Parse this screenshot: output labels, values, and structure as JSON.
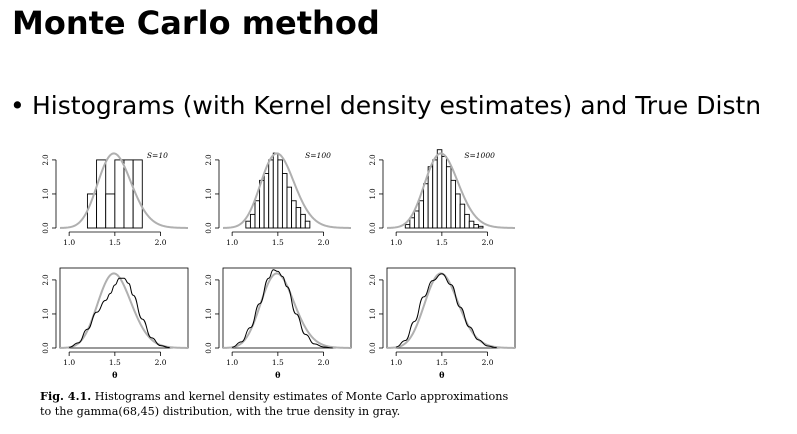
{
  "slide": {
    "title": "Monte Carlo method",
    "bullet": "Histograms (with Kernel density estimates) and True Distn"
  },
  "figure": {
    "caption_label": "Fig. 4.1.",
    "caption_line1": "Histograms and kernel density estimates of Monte Carlo approximations",
    "caption_line2": "to the gamma(68,45) distribution, with the true density in gray."
  },
  "colors": {
    "true_density": "#b0b0b0",
    "estimate": "#000000"
  },
  "chart_data": [
    {
      "type": "bar",
      "panel": "histogram",
      "label": "S=10",
      "bin_edges": [
        1.2,
        1.3,
        1.4,
        1.5,
        1.6,
        1.7,
        1.8
      ],
      "heights": [
        1.0,
        2.0,
        1.0,
        2.0,
        2.0,
        2.0
      ],
      "xticks": [
        "1.0",
        "1.5",
        "2.0"
      ],
      "yticks": [
        "0.0",
        "1.0",
        "2.0"
      ],
      "xlim": [
        0.9,
        2.3
      ],
      "ylim": [
        0,
        2.35
      ],
      "true_density": "gamma(68,45)"
    },
    {
      "type": "bar",
      "panel": "histogram",
      "label": "S=100",
      "bin_edges": [
        1.15,
        1.2,
        1.25,
        1.3,
        1.35,
        1.4,
        1.45,
        1.5,
        1.55,
        1.6,
        1.65,
        1.7,
        1.75,
        1.8,
        1.85
      ],
      "heights": [
        0.2,
        0.4,
        0.8,
        1.4,
        1.6,
        2.0,
        2.2,
        2.0,
        1.6,
        1.2,
        0.8,
        0.6,
        0.4,
        0.2
      ],
      "xticks": [
        "1.0",
        "1.5",
        "2.0"
      ],
      "yticks": [
        "0.0",
        "1.0",
        "2.0"
      ],
      "xlim": [
        0.9,
        2.3
      ],
      "ylim": [
        0,
        2.35
      ],
      "true_density": "gamma(68,45)"
    },
    {
      "type": "bar",
      "panel": "histogram",
      "label": "S=1000",
      "bin_edges": [
        1.1,
        1.15,
        1.2,
        1.25,
        1.3,
        1.35,
        1.4,
        1.45,
        1.5,
        1.55,
        1.6,
        1.65,
        1.7,
        1.75,
        1.8,
        1.85,
        1.9,
        1.95
      ],
      "heights": [
        0.1,
        0.3,
        0.5,
        0.8,
        1.3,
        1.8,
        2.0,
        2.3,
        2.1,
        1.8,
        1.4,
        1.0,
        0.7,
        0.4,
        0.2,
        0.1,
        0.05
      ],
      "xticks": [
        "1.0",
        "1.5",
        "2.0"
      ],
      "yticks": [
        "0.0",
        "1.0",
        "2.0"
      ],
      "xlim": [
        0.9,
        2.3
      ],
      "ylim": [
        0,
        2.35
      ],
      "true_density": "gamma(68,45)"
    },
    {
      "type": "line",
      "panel": "kde",
      "xlabel": "θ",
      "x": [
        1.0,
        1.1,
        1.2,
        1.3,
        1.4,
        1.45,
        1.5,
        1.55,
        1.6,
        1.65,
        1.7,
        1.8,
        1.9,
        2.0,
        2.1
      ],
      "y": [
        0.02,
        0.15,
        0.55,
        1.05,
        1.4,
        1.6,
        1.85,
        2.05,
        2.05,
        1.9,
        1.55,
        0.85,
        0.3,
        0.07,
        0.01
      ],
      "xticks": [
        "1.0",
        "1.5",
        "2.0"
      ],
      "yticks": [
        "0.0",
        "1.0",
        "2.0"
      ],
      "xlim": [
        0.9,
        2.3
      ],
      "ylim": [
        0,
        2.35
      ],
      "true_density": "gamma(68,45)"
    },
    {
      "type": "line",
      "panel": "kde",
      "xlabel": "θ",
      "x": [
        1.0,
        1.1,
        1.2,
        1.3,
        1.4,
        1.45,
        1.5,
        1.55,
        1.6,
        1.7,
        1.8,
        1.9,
        2.0,
        2.1
      ],
      "y": [
        0.02,
        0.18,
        0.6,
        1.3,
        2.05,
        2.3,
        2.25,
        2.1,
        1.8,
        1.0,
        0.4,
        0.12,
        0.03,
        0.0
      ],
      "xticks": [
        "1.0",
        "1.5",
        "2.0"
      ],
      "yticks": [
        "0.0",
        "1.0",
        "2.0"
      ],
      "xlim": [
        0.9,
        2.3
      ],
      "ylim": [
        0,
        2.35
      ],
      "true_density": "gamma(68,45)"
    },
    {
      "type": "line",
      "panel": "kde",
      "xlabel": "θ",
      "x": [
        1.0,
        1.1,
        1.2,
        1.3,
        1.4,
        1.5,
        1.6,
        1.7,
        1.8,
        1.9,
        2.0,
        2.1
      ],
      "y": [
        0.03,
        0.22,
        0.78,
        1.5,
        1.98,
        2.18,
        1.86,
        1.2,
        0.62,
        0.24,
        0.06,
        0.01
      ],
      "xticks": [
        "1.0",
        "1.5",
        "2.0"
      ],
      "yticks": [
        "0.0",
        "1.0",
        "2.0"
      ],
      "xlim": [
        0.9,
        2.3
      ],
      "ylim": [
        0,
        2.35
      ],
      "true_density": "gamma(68,45)"
    }
  ]
}
